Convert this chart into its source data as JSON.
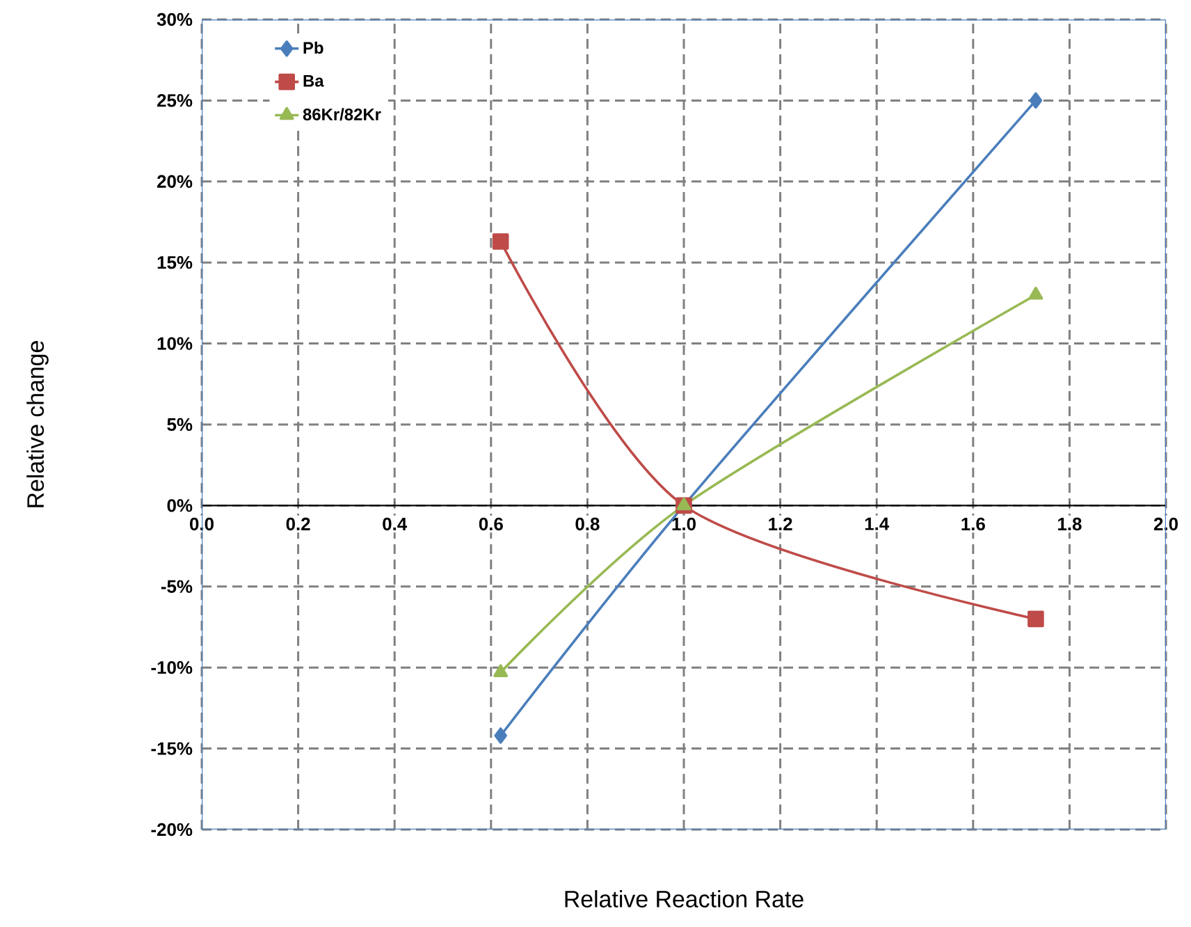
{
  "chart_data": {
    "type": "line",
    "xlabel": "Relative Reaction Rate",
    "ylabel": "Relative change",
    "x": [
      0.62,
      1.0,
      1.73
    ],
    "series": [
      {
        "name": "Pb",
        "color": "#4a7ebb",
        "marker": "diamond",
        "values": [
          -14.2,
          0,
          25
        ]
      },
      {
        "name": "Ba",
        "color": "#be4b48",
        "marker": "square",
        "values": [
          16.3,
          0,
          -7
        ]
      },
      {
        "name": "86Kr/82Kr",
        "color": "#98b954",
        "marker": "triangle",
        "values": [
          -10.3,
          0,
          13
        ]
      }
    ],
    "xlim": [
      0,
      2
    ],
    "ylim": [
      -20,
      30
    ],
    "xticks": [
      {
        "value": 0,
        "label": "0.0"
      },
      {
        "value": 0.2,
        "label": "0.2"
      },
      {
        "value": 0.4,
        "label": "0.4"
      },
      {
        "value": 0.6,
        "label": "0.6"
      },
      {
        "value": 0.8,
        "label": "0.8"
      },
      {
        "value": 1,
        "label": "1.0"
      },
      {
        "value": 1.2,
        "label": "1.2"
      },
      {
        "value": 1.4,
        "label": "1.4"
      },
      {
        "value": 1.6,
        "label": "1.6"
      },
      {
        "value": 1.8,
        "label": "1.8"
      },
      {
        "value": 2,
        "label": "2.0"
      }
    ],
    "yticks": [
      {
        "value": -20,
        "label": "-20%"
      },
      {
        "value": -15,
        "label": "-15%"
      },
      {
        "value": -10,
        "label": "-10%"
      },
      {
        "value": -5,
        "label": "-5%"
      },
      {
        "value": 0,
        "label": "0%"
      },
      {
        "value": 5,
        "label": "5%"
      },
      {
        "value": 10,
        "label": "10%"
      },
      {
        "value": 15,
        "label": "15%"
      },
      {
        "value": 20,
        "label": "20%"
      },
      {
        "value": 25,
        "label": "25%"
      },
      {
        "value": 30,
        "label": "30%"
      }
    ],
    "grid": true,
    "legend": "top left",
    "line_style": "solid"
  }
}
